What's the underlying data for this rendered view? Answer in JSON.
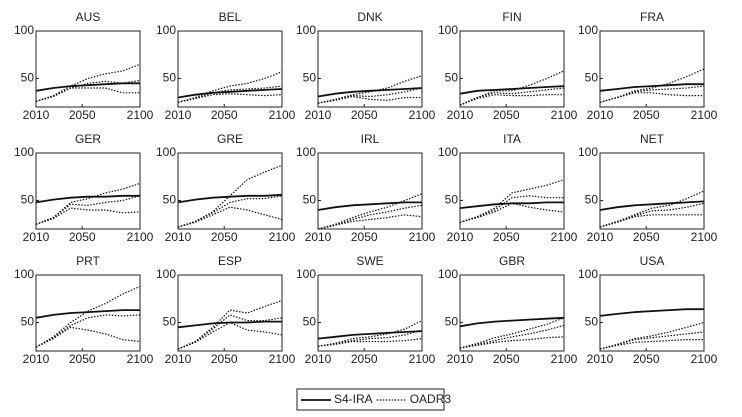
{
  "legend": [
    {
      "name": "S4-IRA",
      "color": "#111111",
      "dash": "solid"
    },
    {
      "name": "OADR3",
      "color": "#111111",
      "dash": "dotted"
    }
  ],
  "chart_data": [
    {
      "type": "line",
      "title": "AUS",
      "x": [
        2010,
        2025,
        2040,
        2055,
        2070,
        2085,
        2100
      ],
      "xlim": [
        2010,
        2100
      ],
      "xticks": [
        2010,
        2050,
        2100
      ],
      "ylim": [
        20,
        100
      ],
      "yticks": [
        50,
        100
      ],
      "series": [
        {
          "legend": 0,
          "values": [
            37,
            40,
            42,
            43,
            44,
            45,
            45
          ]
        },
        {
          "legend": 1,
          "values": [
            26,
            32,
            42,
            50,
            55,
            58,
            65
          ]
        },
        {
          "legend": 1,
          "values": [
            26,
            31,
            40,
            45,
            47,
            45,
            48
          ]
        },
        {
          "legend": 1,
          "values": [
            26,
            31,
            40,
            40,
            40,
            35,
            35
          ]
        }
      ]
    },
    {
      "type": "line",
      "title": "BEL",
      "x": [
        2010,
        2025,
        2040,
        2055,
        2070,
        2085,
        2100
      ],
      "xlim": [
        2010,
        2100
      ],
      "xticks": [
        2010,
        2050,
        2100
      ],
      "ylim": [
        20,
        100
      ],
      "yticks": [
        50,
        100
      ],
      "series": [
        {
          "legend": 0,
          "values": [
            30,
            33,
            35,
            36,
            37,
            38,
            39
          ]
        },
        {
          "legend": 1,
          "values": [
            25,
            30,
            37,
            42,
            45,
            50,
            57
          ]
        },
        {
          "legend": 1,
          "values": [
            25,
            29,
            35,
            38,
            39,
            40,
            42
          ]
        },
        {
          "legend": 1,
          "values": [
            25,
            29,
            33,
            34,
            33,
            32,
            33
          ]
        }
      ]
    },
    {
      "type": "line",
      "title": "DNK",
      "x": [
        2010,
        2025,
        2040,
        2055,
        2070,
        2085,
        2100
      ],
      "xlim": [
        2010,
        2100
      ],
      "xticks": [
        2010,
        2050,
        2100
      ],
      "ylim": [
        20,
        100
      ],
      "yticks": [
        50,
        100
      ],
      "series": [
        {
          "legend": 0,
          "values": [
            31,
            34,
            36,
            37,
            38,
            39,
            40
          ]
        },
        {
          "legend": 1,
          "values": [
            24,
            28,
            33,
            36,
            40,
            47,
            53
          ]
        },
        {
          "legend": 1,
          "values": [
            24,
            28,
            32,
            31,
            33,
            36,
            40
          ]
        },
        {
          "legend": 1,
          "values": [
            24,
            27,
            31,
            28,
            27,
            30,
            30
          ]
        }
      ]
    },
    {
      "type": "line",
      "title": "FIN",
      "x": [
        2010,
        2025,
        2040,
        2055,
        2070,
        2085,
        2100
      ],
      "xlim": [
        2010,
        2100
      ],
      "xticks": [
        2010,
        2050,
        2100
      ],
      "ylim": [
        20,
        100
      ],
      "yticks": [
        50,
        100
      ],
      "series": [
        {
          "legend": 0,
          "values": [
            34,
            37,
            38,
            39,
            40,
            41,
            42
          ]
        },
        {
          "legend": 1,
          "values": [
            22,
            30,
            37,
            37,
            43,
            50,
            58
          ]
        },
        {
          "legend": 1,
          "values": [
            22,
            30,
            35,
            34,
            36,
            38,
            40
          ]
        },
        {
          "legend": 1,
          "values": [
            22,
            29,
            33,
            32,
            32,
            33,
            33
          ]
        }
      ]
    },
    {
      "type": "line",
      "title": "FRA",
      "x": [
        2010,
        2025,
        2040,
        2055,
        2070,
        2085,
        2100
      ],
      "xlim": [
        2010,
        2100
      ],
      "xticks": [
        2010,
        2050,
        2100
      ],
      "ylim": [
        20,
        100
      ],
      "yticks": [
        50,
        100
      ],
      "series": [
        {
          "legend": 0,
          "values": [
            37,
            39,
            41,
            42,
            43,
            44,
            44
          ]
        },
        {
          "legend": 1,
          "values": [
            25,
            30,
            37,
            40,
            45,
            52,
            60
          ]
        },
        {
          "legend": 1,
          "values": [
            25,
            30,
            36,
            38,
            39,
            40,
            42
          ]
        },
        {
          "legend": 1,
          "values": [
            25,
            30,
            35,
            35,
            33,
            32,
            32
          ]
        }
      ]
    },
    {
      "type": "line",
      "title": "GER",
      "x": [
        2010,
        2025,
        2040,
        2055,
        2070,
        2085,
        2100
      ],
      "xlim": [
        2010,
        2100
      ],
      "xticks": [
        2010,
        2050,
        2100
      ],
      "ylim": [
        20,
        100
      ],
      "yticks": [
        50,
        100
      ],
      "series": [
        {
          "legend": 0,
          "values": [
            48,
            51,
            53,
            54,
            54,
            55,
            55
          ]
        },
        {
          "legend": 1,
          "values": [
            25,
            32,
            48,
            52,
            58,
            62,
            68
          ]
        },
        {
          "legend": 1,
          "values": [
            25,
            32,
            46,
            45,
            48,
            50,
            55
          ]
        },
        {
          "legend": 1,
          "values": [
            25,
            31,
            42,
            40,
            40,
            37,
            38
          ]
        }
      ]
    },
    {
      "type": "line",
      "title": "GRE",
      "x": [
        2010,
        2025,
        2040,
        2055,
        2070,
        2085,
        2100
      ],
      "xlim": [
        2010,
        2100
      ],
      "xticks": [
        2010,
        2050,
        2100
      ],
      "ylim": [
        20,
        100
      ],
      "yticks": [
        50,
        100
      ],
      "series": [
        {
          "legend": 0,
          "values": [
            48,
            51,
            53,
            54,
            55,
            55,
            56
          ]
        },
        {
          "legend": 1,
          "values": [
            22,
            28,
            38,
            55,
            72,
            80,
            87
          ]
        },
        {
          "legend": 1,
          "values": [
            22,
            28,
            37,
            48,
            52,
            52,
            55
          ]
        },
        {
          "legend": 1,
          "values": [
            22,
            27,
            35,
            43,
            40,
            35,
            30
          ]
        }
      ]
    },
    {
      "type": "line",
      "title": "IRL",
      "x": [
        2010,
        2025,
        2040,
        2055,
        2070,
        2085,
        2100
      ],
      "xlim": [
        2010,
        2100
      ],
      "xticks": [
        2010,
        2050,
        2100
      ],
      "ylim": [
        20,
        100
      ],
      "yticks": [
        50,
        100
      ],
      "series": [
        {
          "legend": 0,
          "values": [
            40,
            43,
            45,
            46,
            47,
            48,
            48
          ]
        },
        {
          "legend": 1,
          "values": [
            20,
            25,
            32,
            38,
            43,
            50,
            57
          ]
        },
        {
          "legend": 1,
          "values": [
            20,
            24,
            30,
            35,
            38,
            42,
            45
          ]
        },
        {
          "legend": 1,
          "values": [
            20,
            24,
            28,
            30,
            32,
            35,
            33
          ]
        }
      ]
    },
    {
      "type": "line",
      "title": "ITA",
      "x": [
        2010,
        2025,
        2040,
        2055,
        2070,
        2085,
        2100
      ],
      "xlim": [
        2010,
        2100
      ],
      "xticks": [
        2010,
        2050,
        2100
      ],
      "ylim": [
        20,
        100
      ],
      "yticks": [
        50,
        100
      ],
      "series": [
        {
          "legend": 0,
          "values": [
            42,
            44,
            46,
            47,
            47,
            48,
            48
          ]
        },
        {
          "legend": 1,
          "values": [
            27,
            33,
            42,
            58,
            62,
            66,
            72
          ]
        },
        {
          "legend": 1,
          "values": [
            27,
            33,
            40,
            53,
            55,
            53,
            53
          ]
        },
        {
          "legend": 1,
          "values": [
            27,
            32,
            38,
            47,
            43,
            40,
            38
          ]
        }
      ]
    },
    {
      "type": "line",
      "title": "NET",
      "x": [
        2010,
        2025,
        2040,
        2055,
        2070,
        2085,
        2100
      ],
      "xlim": [
        2010,
        2100
      ],
      "xticks": [
        2010,
        2050,
        2100
      ],
      "ylim": [
        20,
        100
      ],
      "yticks": [
        50,
        100
      ],
      "series": [
        {
          "legend": 0,
          "values": [
            40,
            43,
            45,
            46,
            47,
            48,
            49
          ]
        },
        {
          "legend": 1,
          "values": [
            22,
            28,
            35,
            42,
            45,
            52,
            60
          ]
        },
        {
          "legend": 1,
          "values": [
            22,
            28,
            34,
            39,
            40,
            43,
            47
          ]
        },
        {
          "legend": 1,
          "values": [
            22,
            27,
            33,
            35,
            35,
            35,
            35
          ]
        }
      ]
    },
    {
      "type": "line",
      "title": "PRT",
      "x": [
        2010,
        2025,
        2040,
        2055,
        2070,
        2085,
        2100
      ],
      "xlim": [
        2010,
        2100
      ],
      "xticks": [
        2010,
        2050,
        2100
      ],
      "ylim": [
        20,
        100
      ],
      "yticks": [
        50,
        100
      ],
      "series": [
        {
          "legend": 0,
          "values": [
            55,
            58,
            60,
            61,
            62,
            63,
            63
          ]
        },
        {
          "legend": 1,
          "values": [
            24,
            35,
            50,
            62,
            70,
            80,
            88
          ]
        },
        {
          "legend": 1,
          "values": [
            24,
            34,
            47,
            55,
            58,
            57,
            58
          ]
        },
        {
          "legend": 1,
          "values": [
            24,
            33,
            45,
            42,
            38,
            32,
            30
          ]
        }
      ]
    },
    {
      "type": "line",
      "title": "ESP",
      "x": [
        2010,
        2025,
        2040,
        2055,
        2070,
        2085,
        2100
      ],
      "xlim": [
        2010,
        2100
      ],
      "xticks": [
        2010,
        2050,
        2100
      ],
      "ylim": [
        20,
        100
      ],
      "yticks": [
        50,
        100
      ],
      "series": [
        {
          "legend": 0,
          "values": [
            45,
            47,
            49,
            50,
            50,
            51,
            51
          ]
        },
        {
          "legend": 1,
          "values": [
            22,
            30,
            45,
            63,
            60,
            67,
            73
          ]
        },
        {
          "legend": 1,
          "values": [
            22,
            30,
            43,
            58,
            52,
            52,
            55
          ]
        },
        {
          "legend": 1,
          "values": [
            22,
            29,
            40,
            50,
            42,
            40,
            37
          ]
        }
      ]
    },
    {
      "type": "line",
      "title": "SWE",
      "x": [
        2010,
        2025,
        2040,
        2055,
        2070,
        2085,
        2100
      ],
      "xlim": [
        2010,
        2100
      ],
      "xticks": [
        2010,
        2050,
        2100
      ],
      "ylim": [
        20,
        100
      ],
      "yticks": [
        50,
        100
      ],
      "series": [
        {
          "legend": 0,
          "values": [
            33,
            35,
            37,
            38,
            39,
            40,
            41
          ]
        },
        {
          "legend": 1,
          "values": [
            25,
            28,
            33,
            35,
            38,
            43,
            52
          ]
        },
        {
          "legend": 1,
          "values": [
            25,
            28,
            31,
            33,
            34,
            37,
            42
          ]
        },
        {
          "legend": 1,
          "values": [
            25,
            27,
            30,
            30,
            30,
            31,
            33
          ]
        }
      ]
    },
    {
      "type": "line",
      "title": "GBR",
      "x": [
        2010,
        2025,
        2040,
        2055,
        2070,
        2085,
        2100
      ],
      "xlim": [
        2010,
        2100
      ],
      "xticks": [
        2010,
        2050,
        2100
      ],
      "ylim": [
        20,
        100
      ],
      "yticks": [
        50,
        100
      ],
      "series": [
        {
          "legend": 0,
          "values": [
            46,
            49,
            51,
            52,
            53,
            54,
            55
          ]
        },
        {
          "legend": 1,
          "values": [
            23,
            28,
            34,
            38,
            43,
            48,
            55
          ]
        },
        {
          "legend": 1,
          "values": [
            23,
            27,
            31,
            35,
            38,
            42,
            47
          ]
        },
        {
          "legend": 1,
          "values": [
            23,
            26,
            29,
            31,
            32,
            34,
            35
          ]
        }
      ]
    },
    {
      "type": "line",
      "title": "USA",
      "x": [
        2010,
        2025,
        2040,
        2055,
        2070,
        2085,
        2100
      ],
      "xlim": [
        2010,
        2100
      ],
      "xticks": [
        2010,
        2050,
        2100
      ],
      "ylim": [
        20,
        100
      ],
      "yticks": [
        50,
        100
      ],
      "series": [
        {
          "legend": 0,
          "values": [
            57,
            59,
            61,
            62,
            63,
            64,
            64
          ]
        },
        {
          "legend": 1,
          "values": [
            22,
            27,
            33,
            36,
            40,
            45,
            50
          ]
        },
        {
          "legend": 1,
          "values": [
            22,
            27,
            32,
            34,
            36,
            38,
            40
          ]
        },
        {
          "legend": 1,
          "values": [
            22,
            26,
            29,
            30,
            31,
            32,
            32
          ]
        }
      ]
    }
  ]
}
